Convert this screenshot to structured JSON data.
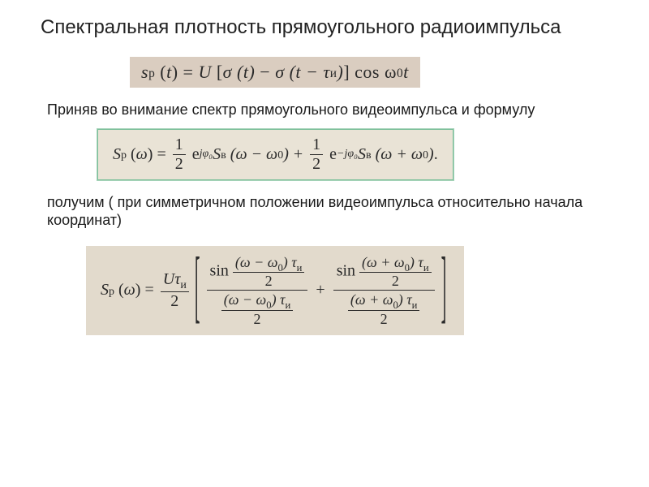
{
  "colors": {
    "page_bg": "#ffffff",
    "title_color": "#222222",
    "body_color": "#1a1a1a",
    "math_color": "#2a2a2a",
    "scan1_bg": "#dacdc0",
    "scan2_bg": "#e9e3d6",
    "scan2_border": "#7bbf9a",
    "scan3_bg": "#e2dacc"
  },
  "typography": {
    "body_font": "Arial",
    "math_font": "Times New Roman",
    "title_size_pt": 18,
    "body_size_pt": 13,
    "math_size_pt": 15
  },
  "title": "Спектральная плотность прямоугольного радиоимпульса",
  "para1": "Приняв во внимание спектр прямоугольного видеоимпульса и формулу",
  "para2": "получим ( при симметричном положении видеоимпульса относительно начала координат)",
  "eq1": {
    "lhs_sym": "s",
    "lhs_sub": "p",
    "lhs_arg": "t",
    "rhs_U": "U",
    "sigma1": "σ (t)",
    "minus": "−",
    "sigma2_fn": "σ (t − τ",
    "sigma2_sub": "и",
    "sigma2_close": ")",
    "cos": "cos ω",
    "cos_sub": "0",
    "cos_t": "t"
  },
  "eq2": {
    "lhs_S": "S",
    "lhs_sub": "p",
    "lhs_arg": "ω",
    "half": {
      "num": "1",
      "den": "2"
    },
    "exp1_pre": "e",
    "exp1_sup": "jφ₀",
    "Sv": "S",
    "Sv_sub": "в",
    "arg_open": "(ω − ω",
    "arg_sub": "0",
    "arg_close": ")",
    "plus": "+",
    "exp2_pre": "e",
    "exp2_sup": "−jφ₀",
    "arg2_open": "(ω + ω",
    "period": "."
  },
  "eq3": {
    "lhs_S": "S",
    "lhs_sub": "p",
    "lhs_arg": "ω",
    "coef_num_U": "Uτ",
    "coef_num_sub": "и",
    "coef_den": "2",
    "sin": "sin",
    "n1_in": "(ω − ω",
    "n1_close": ") τ",
    "tau_sub": "и",
    "d1_in": "(ω − ω",
    "n2_in": "(ω + ω",
    "d2_in": "(ω + ω",
    "two": "2",
    "w0_sub": "0",
    "plus": "+"
  }
}
